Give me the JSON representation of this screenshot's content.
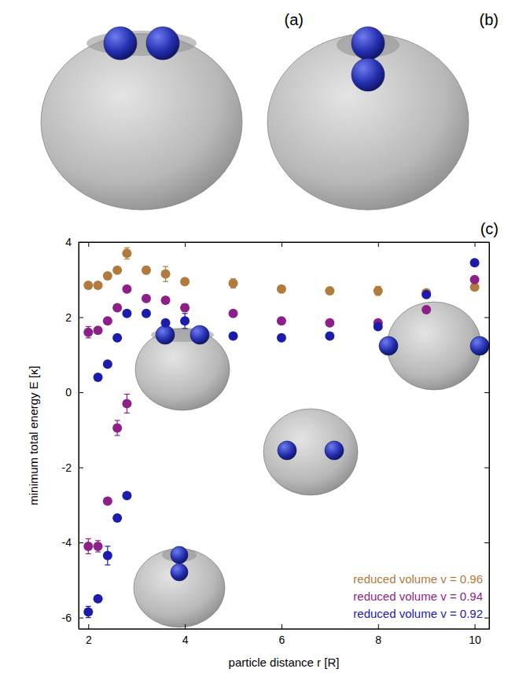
{
  "chart_data": {
    "type": "scatter",
    "xlabel": "particle distance r [R]",
    "ylabel": "minimum total energy E [κ]",
    "xlim": [
      1.8,
      10.3
    ],
    "ylim": [
      -6.3,
      4.0
    ],
    "xticks": [
      2,
      4,
      6,
      8,
      10
    ],
    "yticks": [
      -6,
      -4,
      -2,
      0,
      2,
      4
    ],
    "legend": "lower right",
    "marker": "circle",
    "series": [
      {
        "name": "reduced volume v = 0.96",
        "color": "#b07b3c",
        "x": [
          2,
          2.2,
          2.4,
          2.6,
          2.8,
          3.2,
          3.6,
          4,
          5,
          6,
          7,
          8,
          9,
          10
        ],
        "values": [
          2.85,
          2.85,
          3.1,
          3.25,
          3.7,
          3.25,
          3.15,
          2.95,
          2.9,
          2.75,
          2.7,
          2.7,
          2.65,
          2.8
        ],
        "errors": [
          null,
          null,
          null,
          null,
          0.15,
          0.1,
          0.2,
          null,
          0.12,
          null,
          null,
          0.12,
          null,
          null
        ]
      },
      {
        "name": "reduced volume v = 0.94",
        "color": "#8c1f88",
        "x": [
          2,
          2.2,
          2.4,
          2.6,
          2.8,
          3.2,
          3.6,
          4,
          5,
          6,
          7,
          8,
          9,
          10,
          2,
          2.2,
          2.4,
          2.6,
          2.8
        ],
        "values": [
          1.6,
          1.65,
          1.9,
          2.25,
          2.75,
          2.5,
          2.45,
          2.25,
          2.1,
          1.9,
          1.85,
          1.85,
          2.2,
          3.0,
          -4.1,
          -4.1,
          -2.9,
          -0.95,
          -0.3
        ],
        "errors": [
          0.15,
          null,
          null,
          null,
          null,
          null,
          null,
          0.1,
          null,
          null,
          null,
          null,
          null,
          null,
          0.2,
          0.15,
          null,
          0.2,
          0.25
        ]
      },
      {
        "name": "reduced volume v = 0.92",
        "color": "#1c1cac",
        "x": [
          2.2,
          2.4,
          2.6,
          2.8,
          3.2,
          3.6,
          4,
          5,
          6,
          7,
          8,
          9,
          10,
          2,
          2.2,
          2.4,
          2.6,
          2.8
        ],
        "values": [
          0.4,
          0.75,
          1.45,
          2.1,
          2.1,
          1.85,
          1.9,
          1.5,
          1.45,
          1.5,
          1.75,
          2.6,
          3.45,
          -5.85,
          -5.5,
          -4.35,
          -3.35,
          -2.75
        ],
        "errors": [
          null,
          null,
          null,
          null,
          null,
          null,
          0.2,
          null,
          null,
          null,
          null,
          null,
          null,
          0.15,
          null,
          0.25,
          null,
          null
        ]
      }
    ]
  },
  "panel_labels": [
    "(a)",
    "(b)",
    "(c)"
  ]
}
